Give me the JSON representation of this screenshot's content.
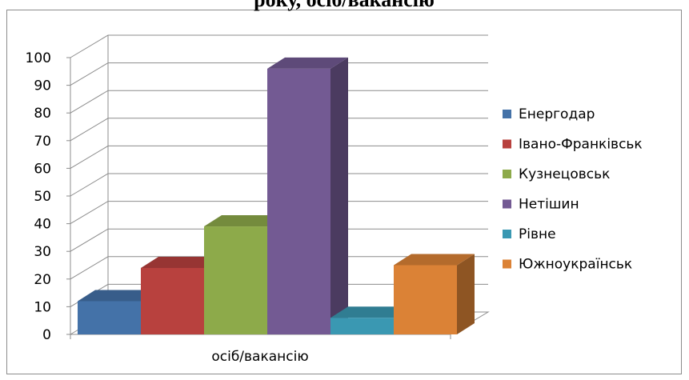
{
  "chart_data": {
    "type": "bar",
    "title": "року, осіб/вакансію",
    "categories": [
      "осіб/вакансію"
    ],
    "series": [
      {
        "name": "Енергодар",
        "values": [
          12
        ],
        "color": "#4472A8"
      },
      {
        "name": "Івано-Франківськ",
        "values": [
          24
        ],
        "color": "#B8413E"
      },
      {
        "name": "Кузнецовськ",
        "values": [
          39
        ],
        "color": "#8DAA4A"
      },
      {
        "name": "Нетішин",
        "values": [
          96
        ],
        "color": "#735A93"
      },
      {
        "name": "Рівне",
        "values": [
          6
        ],
        "color": "#3A98B2"
      },
      {
        "name": "Южноукраїнськ",
        "values": [
          25
        ],
        "color": "#DB8236"
      }
    ],
    "y_ticks": [
      "0",
      "10",
      "20",
      "30",
      "40",
      "50",
      "60",
      "70",
      "80",
      "90",
      "100"
    ],
    "ylim": [
      0,
      100
    ],
    "grid": true,
    "legend_position": "right",
    "xlabel": "",
    "ylabel": ""
  }
}
